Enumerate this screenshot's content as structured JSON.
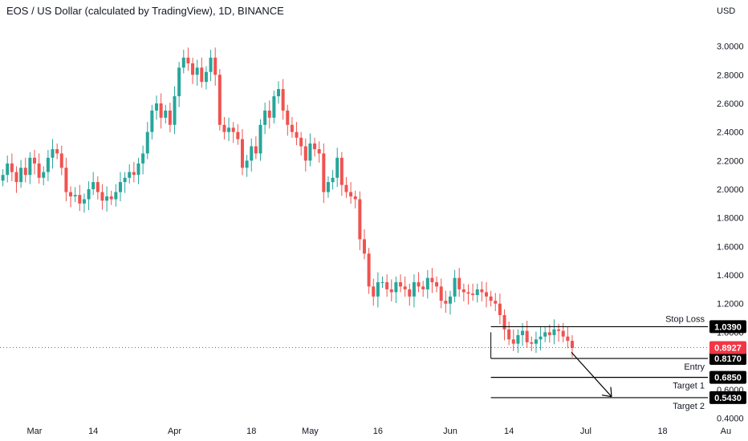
{
  "chart_data": {
    "type": "candlestick",
    "title": "EOS / US Dollar (calculated by TradingView), 1D, BINANCE",
    "currency_label": "USD",
    "ylim": [
      0.38,
      3.25
    ],
    "y_ticks": [
      "3.0000",
      "2.8000",
      "2.6000",
      "2.4000",
      "2.2000",
      "2.0000",
      "1.8000",
      "1.6000",
      "1.4000",
      "1.2000",
      "1.0000",
      "0.6000",
      "0.4000"
    ],
    "y_tick_values": [
      3.0,
      2.8,
      2.6,
      2.4,
      2.2,
      2.0,
      1.8,
      1.6,
      1.4,
      1.2,
      1.0,
      0.6,
      0.4
    ],
    "x_ticks": [
      {
        "label": "Mar",
        "day": 0
      },
      {
        "label": "14",
        "day": 13
      },
      {
        "label": "Apr",
        "day": 31
      },
      {
        "label": "18",
        "day": 48
      },
      {
        "label": "May",
        "day": 61
      },
      {
        "label": "16",
        "day": 76
      },
      {
        "label": "Jun",
        "day": 92
      },
      {
        "label": "14",
        "day": 105
      },
      {
        "label": "Jul",
        "day": 122
      },
      {
        "label": "18",
        "day": 139
      },
      {
        "label": "Au",
        "day": 153
      }
    ],
    "x_start_day": -7,
    "x_end_day": 155,
    "up_color": "#26a69a",
    "down_color": "#ef5350",
    "closes": [
      2.1,
      2.18,
      2.12,
      2.05,
      2.15,
      2.1,
      2.22,
      2.18,
      2.08,
      2.12,
      2.22,
      2.28,
      2.25,
      2.15,
      1.98,
      1.95,
      1.96,
      1.9,
      1.93,
      2.0,
      2.05,
      1.98,
      1.92,
      1.95,
      1.93,
      1.98,
      2.05,
      2.08,
      2.12,
      2.1,
      2.18,
      2.25,
      2.4,
      2.55,
      2.6,
      2.5,
      2.55,
      2.45,
      2.65,
      2.85,
      2.92,
      2.88,
      2.8,
      2.85,
      2.75,
      2.82,
      2.92,
      2.8,
      2.45,
      2.4,
      2.43,
      2.4,
      2.35,
      2.15,
      2.2,
      2.3,
      2.25,
      2.45,
      2.55,
      2.5,
      2.65,
      2.7,
      2.55,
      2.45,
      2.4,
      2.36,
      2.3,
      2.2,
      2.32,
      2.28,
      2.25,
      1.98,
      2.05,
      2.08,
      2.22,
      2.03,
      1.98,
      1.95,
      1.93,
      1.65,
      1.55,
      1.32,
      1.25,
      1.35,
      1.35,
      1.3,
      1.28,
      1.35,
      1.32,
      1.3,
      1.25,
      1.35,
      1.32,
      1.3,
      1.38,
      1.35,
      1.32,
      1.22,
      1.2,
      1.25,
      1.38,
      1.3,
      1.28,
      1.27,
      1.26,
      1.3,
      1.28,
      1.25,
      1.22,
      1.2,
      1.12,
      1.02,
      0.95,
      0.92,
      0.98,
      1.01,
      0.93,
      0.92,
      0.95,
      0.97,
      1.0,
      0.98,
      1.02,
      1.01,
      0.97,
      0.94,
      0.89
    ],
    "levels": [
      {
        "name": "Stop Loss",
        "value": 1.039,
        "label": "1.0390"
      },
      {
        "name": "Entry",
        "value": 0.817,
        "label": "0.8170"
      },
      {
        "name": "Target 1",
        "value": 0.685,
        "label": "0.6850"
      },
      {
        "name": "Target 2",
        "value": 0.543,
        "label": "0.5430"
      }
    ],
    "current_price": {
      "value": 0.8927,
      "label": "0.8927",
      "color": "#f23645"
    },
    "level_color": "#000000"
  }
}
